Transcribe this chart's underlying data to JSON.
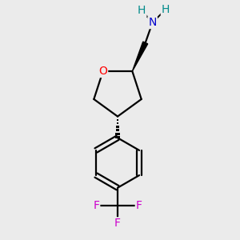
{
  "bg_color": "#ebebeb",
  "atom_colors": {
    "O": "#ff0000",
    "N": "#0000cd",
    "H": "#008b8b",
    "F": "#cc00cc",
    "C": "#000000"
  },
  "bond_color": "#000000",
  "bond_width": 1.6
}
